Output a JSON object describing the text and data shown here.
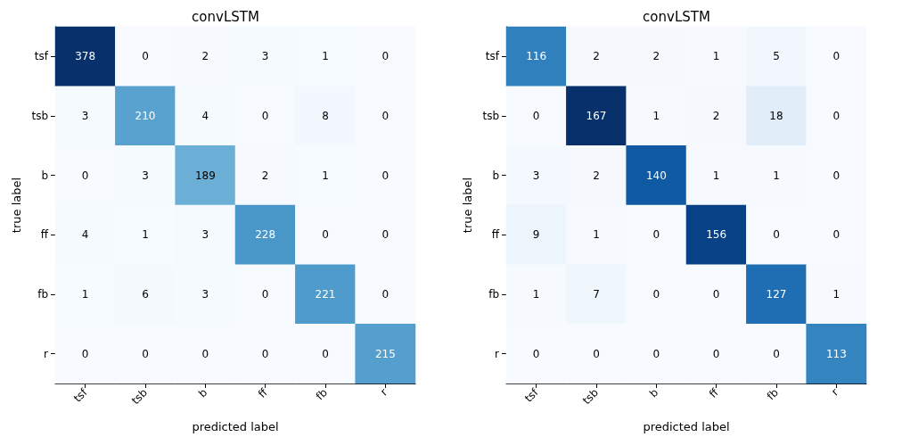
{
  "chart_data": [
    {
      "type": "heatmap",
      "title": "convLSTM",
      "xlabel": "predicted label",
      "ylabel": "true label",
      "data_labels": true,
      "categories": [
        "tsf",
        "tsb",
        "b",
        "ff",
        "fb",
        "r"
      ],
      "y_categories": [
        "tsf",
        "tsb",
        "b",
        "ff",
        "fb",
        "r"
      ],
      "cells": [
        [
          378,
          0,
          2,
          3,
          1,
          0
        ],
        [
          3,
          210,
          4,
          0,
          8,
          0
        ],
        [
          0,
          3,
          189,
          2,
          1,
          0
        ],
        [
          4,
          1,
          3,
          228,
          0,
          0
        ],
        [
          1,
          6,
          3,
          0,
          221,
          0
        ],
        [
          0,
          0,
          0,
          0,
          0,
          215
        ]
      ]
    },
    {
      "type": "heatmap",
      "title": "convLSTM",
      "xlabel": "predicted label",
      "ylabel": "true label",
      "data_labels": true,
      "categories": [
        "tsf",
        "tsb",
        "b",
        "ff",
        "fb",
        "r"
      ],
      "y_categories": [
        "tsf",
        "tsb",
        "b",
        "ff",
        "fb",
        "r"
      ],
      "cells": [
        [
          116,
          2,
          2,
          1,
          5,
          0
        ],
        [
          0,
          167,
          1,
          2,
          18,
          0
        ],
        [
          3,
          2,
          140,
          1,
          1,
          0
        ],
        [
          9,
          1,
          0,
          156,
          0,
          0
        ],
        [
          1,
          7,
          0,
          0,
          127,
          1
        ],
        [
          0,
          0,
          0,
          0,
          0,
          113
        ]
      ]
    }
  ]
}
